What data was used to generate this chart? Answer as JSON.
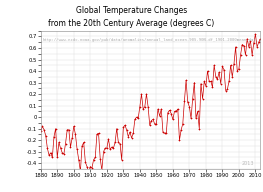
{
  "title_line1": "Global Temperature Changes",
  "title_line2": "from the 20th Century Average (degrees C)",
  "url_text": "http://www.ncdc.noaa.gov/pub/data/anomalies/annual_land_ocean.90S.90N.df_1901-2000mean.dat",
  "watermark": "2013",
  "xlim": [
    1880,
    2013
  ],
  "ylim": [
    -0.45,
    0.75
  ],
  "xticks": [
    1880,
    1890,
    1900,
    1910,
    1920,
    1930,
    1940,
    1950,
    1960,
    1970,
    1980,
    1990,
    2000,
    2010
  ],
  "line_color": "#cc0000",
  "marker_color": "#cc0000",
  "background_color": "#ffffff",
  "title_fontsize": 5.5,
  "url_fontsize": 2.8,
  "tick_fontsize": 3.8,
  "watermark_fontsize": 3.5,
  "years": [
    1880,
    1881,
    1882,
    1883,
    1884,
    1885,
    1886,
    1887,
    1888,
    1889,
    1890,
    1891,
    1892,
    1893,
    1894,
    1895,
    1896,
    1897,
    1898,
    1899,
    1900,
    1901,
    1902,
    1903,
    1904,
    1905,
    1906,
    1907,
    1908,
    1909,
    1910,
    1911,
    1912,
    1913,
    1914,
    1915,
    1916,
    1917,
    1918,
    1919,
    1920,
    1921,
    1922,
    1923,
    1924,
    1925,
    1926,
    1927,
    1928,
    1929,
    1930,
    1931,
    1932,
    1933,
    1934,
    1935,
    1936,
    1937,
    1938,
    1939,
    1940,
    1941,
    1942,
    1943,
    1944,
    1945,
    1946,
    1947,
    1948,
    1949,
    1950,
    1951,
    1952,
    1953,
    1954,
    1955,
    1956,
    1957,
    1958,
    1959,
    1960,
    1961,
    1962,
    1963,
    1964,
    1965,
    1966,
    1967,
    1968,
    1969,
    1970,
    1971,
    1972,
    1973,
    1974,
    1975,
    1976,
    1977,
    1978,
    1979,
    1980,
    1981,
    1982,
    1983,
    1984,
    1985,
    1986,
    1987,
    1988,
    1989,
    1990,
    1991,
    1992,
    1993,
    1994,
    1995,
    1996,
    1997,
    1998,
    1999,
    2000,
    2001,
    2002,
    2003,
    2004,
    2005,
    2006,
    2007,
    2008,
    2009,
    2010,
    2011,
    2012,
    2013
  ],
  "anomalies": [
    -0.12,
    -0.08,
    -0.11,
    -0.16,
    -0.27,
    -0.33,
    -0.31,
    -0.35,
    -0.17,
    -0.1,
    -0.35,
    -0.22,
    -0.27,
    -0.31,
    -0.32,
    -0.23,
    -0.11,
    -0.11,
    -0.26,
    -0.18,
    -0.08,
    -0.15,
    -0.28,
    -0.37,
    -0.47,
    -0.25,
    -0.22,
    -0.39,
    -0.43,
    -0.48,
    -0.43,
    -0.44,
    -0.37,
    -0.35,
    -0.15,
    -0.14,
    -0.36,
    -0.46,
    -0.3,
    -0.27,
    -0.27,
    -0.19,
    -0.28,
    -0.26,
    -0.27,
    -0.22,
    -0.1,
    -0.22,
    -0.23,
    -0.37,
    -0.09,
    -0.07,
    -0.11,
    -0.17,
    -0.13,
    -0.18,
    -0.14,
    -0.02,
    -0.0,
    -0.01,
    0.09,
    0.2,
    0.07,
    0.09,
    0.2,
    0.09,
    -0.07,
    -0.03,
    -0.02,
    -0.06,
    -0.06,
    0.07,
    0.01,
    0.07,
    -0.13,
    -0.14,
    -0.14,
    0.04,
    0.06,
    0.03,
    -0.02,
    0.05,
    0.05,
    0.07,
    -0.2,
    -0.11,
    -0.06,
    0.14,
    0.32,
    0.13,
    0.09,
    -0.01,
    0.16,
    0.3,
    -0.01,
    0.05,
    -0.1,
    0.29,
    0.16,
    0.31,
    0.27,
    0.4,
    0.31,
    0.31,
    0.26,
    0.45,
    0.35,
    0.33,
    0.39,
    0.29,
    0.44,
    0.41,
    0.23,
    0.24,
    0.31,
    0.45,
    0.35,
    0.46,
    0.61,
    0.4,
    0.42,
    0.54,
    0.63,
    0.62,
    0.54,
    0.68,
    0.61,
    0.66,
    0.54,
    0.64,
    0.72,
    0.61,
    0.65,
    0.68
  ]
}
